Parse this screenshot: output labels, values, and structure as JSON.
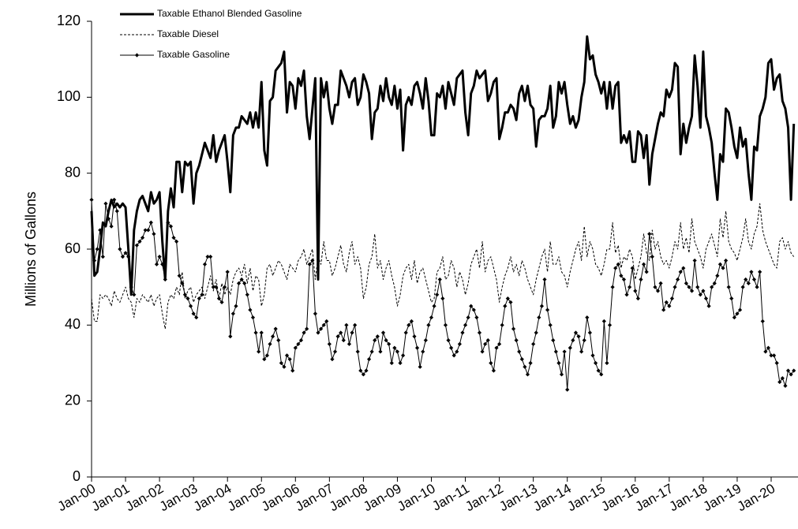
{
  "chart_data": {
    "type": "line",
    "y_label": "Millions of Gallons",
    "ylim": [
      0,
      120
    ],
    "yticks": [
      0,
      20,
      40,
      60,
      80,
      100,
      120
    ],
    "grid": false,
    "legend": "top-left",
    "categories": [
      "Jan-00",
      null,
      null,
      null,
      null,
      null,
      null,
      null,
      null,
      null,
      null,
      null,
      "Jan-01",
      null,
      null,
      null,
      null,
      null,
      null,
      null,
      null,
      null,
      null,
      null,
      "Jan-02",
      null,
      null,
      null,
      null,
      null,
      null,
      null,
      null,
      null,
      null,
      null,
      "Jan-03",
      null,
      null,
      null,
      null,
      null,
      null,
      null,
      null,
      null,
      null,
      null,
      "Jan-04",
      null,
      null,
      null,
      null,
      null,
      null,
      null,
      null,
      null,
      null,
      null,
      "Jan-05",
      null,
      null,
      null,
      null,
      null,
      null,
      null,
      null,
      null,
      null,
      null,
      "Jan-06",
      null,
      null,
      null,
      null,
      null,
      null,
      null,
      null,
      null,
      null,
      null,
      "Jan-07",
      null,
      null,
      null,
      null,
      null,
      null,
      null,
      null,
      null,
      null,
      null,
      "Jan-08",
      null,
      null,
      null,
      null,
      null,
      null,
      null,
      null,
      null,
      null,
      null,
      "Jan-09",
      null,
      null,
      null,
      null,
      null,
      null,
      null,
      null,
      null,
      null,
      null,
      "Jan-10",
      null,
      null,
      null,
      null,
      null,
      null,
      null,
      null,
      null,
      null,
      null,
      "Jan-11",
      null,
      null,
      null,
      null,
      null,
      null,
      null,
      null,
      null,
      null,
      null,
      "Jan-12",
      null,
      null,
      null,
      null,
      null,
      null,
      null,
      null,
      null,
      null,
      null,
      "Jan-13",
      null,
      null,
      null,
      null,
      null,
      null,
      null,
      null,
      null,
      null,
      null,
      "Jan-14",
      null,
      null,
      null,
      null,
      null,
      null,
      null,
      null,
      null,
      null,
      null,
      "Jan-15",
      null,
      null,
      null,
      null,
      null,
      null,
      null,
      null,
      null,
      null,
      null,
      "Jan-16",
      null,
      null,
      null,
      null,
      null,
      null,
      null,
      null,
      null,
      null,
      null,
      "Jan-17",
      null,
      null,
      null,
      null,
      null,
      null,
      null,
      null,
      null,
      null,
      null,
      "Jan-18",
      null,
      null,
      null,
      null,
      null,
      null,
      null,
      null,
      null,
      null,
      null,
      "Jan-19",
      null,
      null,
      null,
      null,
      null,
      null,
      null,
      null,
      null,
      null,
      null,
      "Jan-20",
      null,
      null,
      null,
      null,
      null,
      null,
      null,
      null
    ],
    "series": [
      {
        "name": "Taxable Ethanol Blended Gasoline",
        "color": "#000000",
        "style": "thick",
        "values": [
          70,
          53,
          54,
          60,
          67,
          66,
          70,
          73,
          71,
          72,
          71,
          72,
          71,
          60,
          48,
          65,
          70,
          73,
          74,
          72,
          70,
          75,
          72,
          73,
          75,
          62,
          52,
          70,
          76,
          71,
          83,
          83,
          75,
          83,
          82,
          83,
          72,
          80,
          82,
          85,
          88,
          86,
          84,
          90,
          83,
          86,
          88,
          90,
          83,
          75,
          90,
          92,
          92,
          95,
          94,
          93,
          96,
          92,
          96,
          92,
          104,
          86,
          82,
          99,
          100,
          107,
          108,
          109,
          112,
          96,
          104,
          103,
          97,
          105,
          103,
          107,
          95,
          89,
          97,
          105,
          52,
          105,
          100,
          104,
          97,
          93,
          98,
          98,
          107,
          105,
          103,
          100,
          104,
          105,
          98,
          100,
          106,
          104,
          101,
          89,
          96,
          97,
          103,
          99,
          105,
          100,
          98,
          103,
          97,
          102,
          86,
          98,
          100,
          98,
          103,
          104,
          101,
          97,
          105,
          99,
          90,
          90,
          101,
          100,
          103,
          97,
          104,
          101,
          98,
          105,
          106,
          107,
          96,
          90,
          101,
          103,
          107,
          105,
          106,
          107,
          99,
          101,
          104,
          105,
          89,
          92,
          96,
          96,
          98,
          97,
          94,
          101,
          103,
          99,
          103,
          98,
          97,
          87,
          94,
          95,
          95,
          97,
          103,
          92,
          95,
          104,
          101,
          104,
          98,
          93,
          95,
          92,
          94,
          100,
          104,
          116,
          110,
          111,
          106,
          104,
          101,
          104,
          97,
          104,
          97,
          103,
          104,
          88,
          90,
          88,
          91,
          83,
          83,
          91,
          90,
          84,
          90,
          77,
          85,
          89,
          93,
          96,
          95,
          102,
          100,
          102,
          109,
          108,
          85,
          93,
          88,
          92,
          95,
          111,
          103,
          92,
          112,
          95,
          92,
          88,
          80,
          73,
          85,
          83,
          97,
          96,
          92,
          87,
          84,
          92,
          87,
          89,
          80,
          73,
          87,
          86,
          95,
          97,
          100,
          109,
          110,
          102,
          105,
          106,
          99,
          97,
          92,
          73,
          93
        ]
      },
      {
        "name": "Taxable Diesel",
        "color": "#000000",
        "style": "dashed",
        "values": [
          47,
          41,
          41,
          48,
          47,
          48,
          47,
          45,
          49,
          47,
          46,
          48,
          50,
          47,
          46,
          42,
          47,
          46,
          48,
          47,
          46,
          48,
          45,
          47,
          48,
          43,
          39,
          46,
          48,
          47,
          50,
          48,
          54,
          47,
          49,
          50,
          46,
          48,
          49,
          50,
          47,
          50,
          53,
          49,
          52,
          47,
          51,
          48,
          50,
          48,
          52,
          54,
          55,
          53,
          56,
          51,
          55,
          49,
          53,
          52,
          45,
          48,
          55,
          56,
          53,
          55,
          57,
          56,
          54,
          52,
          56,
          55,
          54,
          57,
          58,
          60,
          56,
          58,
          60,
          52,
          58,
          56,
          62,
          57,
          57,
          53,
          55,
          58,
          61,
          56,
          54,
          59,
          62,
          56,
          58,
          55,
          47,
          50,
          56,
          58,
          64,
          55,
          57,
          52,
          55,
          57,
          53,
          50,
          45,
          48,
          53,
          55,
          56,
          52,
          57,
          51,
          54,
          55,
          52,
          49,
          46,
          47,
          54,
          55,
          58,
          52,
          53,
          57,
          55,
          50,
          54,
          52,
          48,
          51,
          56,
          58,
          60,
          55,
          62,
          54,
          57,
          58,
          55,
          52,
          46,
          50,
          53,
          55,
          58,
          54,
          56,
          53,
          57,
          55,
          52,
          50,
          48,
          52,
          55,
          58,
          60,
          54,
          62,
          56,
          56,
          58,
          54,
          53,
          50,
          54,
          57,
          60,
          62,
          57,
          66,
          58,
          62,
          60,
          56,
          55,
          53,
          56,
          60,
          60,
          67,
          59,
          61,
          55,
          58,
          57,
          60,
          58,
          52,
          55,
          58,
          64,
          59,
          57,
          65,
          60,
          62,
          58,
          56,
          57,
          55,
          58,
          62,
          60,
          67,
          60,
          63,
          59,
          68,
          62,
          60,
          58,
          55,
          60,
          62,
          64,
          61,
          58,
          68,
          63,
          70,
          62,
          60,
          59,
          57,
          60,
          63,
          68,
          62,
          60,
          64,
          66,
          72,
          65,
          62,
          60,
          58,
          56,
          55,
          62,
          63,
          60,
          62,
          59,
          58
        ]
      },
      {
        "name": "Taxable Gasoline",
        "color": "#000000",
        "style": "diamond",
        "values": [
          73,
          57,
          60,
          65,
          58,
          72,
          68,
          66,
          73,
          70,
          60,
          58,
          59,
          58,
          50,
          48,
          61,
          62,
          63,
          65,
          65,
          67,
          64,
          56,
          58,
          56,
          52,
          67,
          66,
          63,
          62,
          53,
          51,
          48,
          47,
          45,
          43,
          42,
          47,
          48,
          56,
          58,
          58,
          50,
          50,
          47,
          46,
          50,
          54,
          37,
          43,
          45,
          51,
          52,
          51,
          48,
          44,
          42,
          38,
          33,
          38,
          31,
          32,
          35,
          37,
          39,
          36,
          30,
          29,
          32,
          31,
          28,
          34,
          35,
          36,
          38,
          39,
          56,
          57,
          43,
          38,
          39,
          40,
          41,
          35,
          31,
          33,
          37,
          38,
          36,
          40,
          35,
          38,
          40,
          33,
          28,
          27,
          28,
          31,
          33,
          36,
          37,
          33,
          38,
          36,
          35,
          30,
          34,
          33,
          30,
          32,
          38,
          40,
          41,
          37,
          34,
          29,
          33,
          36,
          40,
          42,
          45,
          48,
          52,
          47,
          40,
          36,
          34,
          32,
          33,
          35,
          38,
          40,
          42,
          45,
          44,
          42,
          38,
          33,
          35,
          36,
          30,
          28,
          34,
          35,
          40,
          45,
          47,
          46,
          39,
          36,
          33,
          31,
          29,
          27,
          30,
          35,
          38,
          42,
          45,
          52,
          44,
          40,
          36,
          33,
          30,
          27,
          33,
          23,
          34,
          36,
          38,
          37,
          33,
          36,
          42,
          38,
          32,
          30,
          28,
          27,
          41,
          30,
          40,
          50,
          55,
          56,
          53,
          52,
          48,
          50,
          55,
          49,
          47,
          52,
          56,
          54,
          64,
          58,
          50,
          49,
          51,
          44,
          46,
          45,
          47,
          50,
          52,
          54,
          55,
          51,
          50,
          49,
          57,
          50,
          48,
          49,
          47,
          45,
          50,
          51,
          53,
          56,
          55,
          57,
          50,
          47,
          42,
          43,
          44,
          50,
          52,
          51,
          54,
          52,
          50,
          54,
          41,
          33,
          34,
          32,
          32,
          30,
          25,
          26,
          24,
          28,
          27,
          28
        ]
      }
    ]
  }
}
